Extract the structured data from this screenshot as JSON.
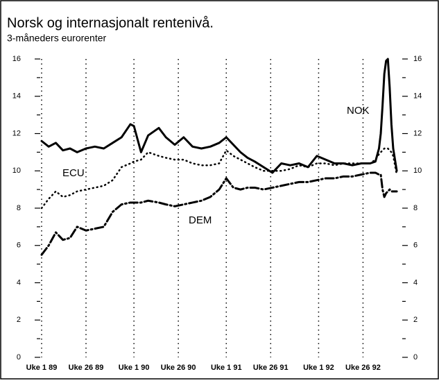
{
  "chart_data": {
    "type": "line",
    "title": "Norsk og internasjonalt rentenivå.",
    "subtitle": "3-måneders eurorenter",
    "x": [
      0,
      4,
      8,
      12,
      16,
      20,
      25,
      30,
      35,
      40,
      45,
      50,
      52,
      56,
      60,
      66,
      70,
      75,
      80,
      85,
      90,
      95,
      100,
      104,
      108,
      112,
      116,
      120,
      125,
      130,
      135,
      140,
      145,
      150,
      155,
      160,
      165,
      170,
      175,
      180,
      185,
      188,
      190,
      191,
      192,
      193,
      194,
      195,
      196,
      197,
      198,
      200
    ],
    "series": [
      {
        "name": "NOK",
        "color": "#000000",
        "style": "solid",
        "values": [
          11.6,
          11.3,
          11.5,
          11.1,
          11.2,
          11.0,
          11.2,
          11.3,
          11.2,
          11.5,
          11.8,
          12.5,
          12.4,
          11.0,
          11.9,
          12.3,
          11.8,
          11.4,
          11.8,
          11.3,
          11.2,
          11.3,
          11.5,
          11.8,
          11.4,
          11.0,
          10.7,
          10.5,
          10.2,
          9.9,
          10.4,
          10.3,
          10.4,
          10.2,
          10.8,
          10.6,
          10.4,
          10.4,
          10.3,
          10.4,
          10.4,
          10.5,
          11.2,
          12.0,
          13.5,
          15.2,
          15.9,
          16.0,
          14.5,
          12.5,
          11.2,
          10.0
        ]
      },
      {
        "name": "ECU",
        "color": "#000000",
        "style": "dotted",
        "values": [
          8.0,
          8.5,
          8.9,
          8.6,
          8.7,
          8.9,
          9.0,
          9.1,
          9.2,
          9.5,
          10.2,
          10.4,
          10.5,
          10.6,
          11.0,
          10.8,
          10.7,
          10.6,
          10.6,
          10.4,
          10.3,
          10.3,
          10.4,
          11.1,
          10.8,
          10.6,
          10.4,
          10.2,
          10.0,
          10.0,
          10.0,
          10.1,
          10.3,
          10.2,
          10.4,
          10.4,
          10.3,
          10.4,
          10.4,
          10.4,
          10.4,
          10.6,
          10.9,
          11.0,
          11.1,
          11.2,
          11.2,
          11.2,
          11.1,
          11.0,
          10.8,
          9.8
        ]
      },
      {
        "name": "DEM",
        "color": "#000000",
        "style": "dashdot",
        "values": [
          5.5,
          6.0,
          6.7,
          6.3,
          6.4,
          7.0,
          6.8,
          6.9,
          7.0,
          7.8,
          8.2,
          8.3,
          8.3,
          8.3,
          8.4,
          8.3,
          8.2,
          8.1,
          8.2,
          8.3,
          8.4,
          8.6,
          9.0,
          9.6,
          9.1,
          9.0,
          9.1,
          9.1,
          9.0,
          9.1,
          9.2,
          9.3,
          9.4,
          9.4,
          9.5,
          9.6,
          9.6,
          9.7,
          9.7,
          9.8,
          9.9,
          9.9,
          9.8,
          9.8,
          9.0,
          8.6,
          8.8,
          8.9,
          9.0,
          8.9,
          8.9,
          8.9
        ]
      }
    ],
    "xlim": [
      0,
      207
    ],
    "xticks": [
      {
        "value": 0,
        "label": "Uke 1 89"
      },
      {
        "value": 25,
        "label": "Uke 26 89"
      },
      {
        "value": 52,
        "label": "Uke 1 90"
      },
      {
        "value": 77,
        "label": "Uke 26 90"
      },
      {
        "value": 104,
        "label": "Uke 1 91"
      },
      {
        "value": 129,
        "label": "Uke 26 91"
      },
      {
        "value": 156,
        "label": "Uke 1 92"
      },
      {
        "value": 181,
        "label": "Uke 26 92"
      }
    ],
    "ylim": [
      0,
      16
    ],
    "yticks": [
      0,
      2,
      4,
      6,
      8,
      10,
      12,
      14,
      16
    ],
    "yticks_minor": [
      1,
      3,
      5,
      7,
      9,
      11,
      13,
      15
    ],
    "y2lim": [
      0,
      16
    ],
    "y2ticks": [
      0,
      2,
      4,
      6,
      8,
      10,
      12,
      14,
      16
    ],
    "grid": true
  }
}
